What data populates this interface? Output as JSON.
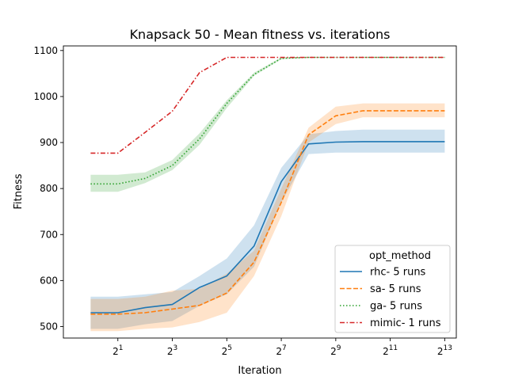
{
  "chart_data": {
    "type": "line",
    "title": "Knapsack 50 - Mean fitness vs. iterations",
    "xlabel": "Iteration",
    "ylabel": "Fitness",
    "x_scale": "log2",
    "x": [
      1,
      2,
      4,
      8,
      16,
      32,
      64,
      128,
      256,
      512,
      1024,
      2048,
      4096,
      8192
    ],
    "xlim": [
      0.5,
      11000
    ],
    "ylim": [
      475,
      1110
    ],
    "xticks": [
      {
        "value": 2,
        "base": "2",
        "exp": "1"
      },
      {
        "value": 8,
        "base": "2",
        "exp": "3"
      },
      {
        "value": 32,
        "base": "2",
        "exp": "5"
      },
      {
        "value": 128,
        "base": "2",
        "exp": "7"
      },
      {
        "value": 512,
        "base": "2",
        "exp": "9"
      },
      {
        "value": 2048,
        "base": "2",
        "exp": "11"
      },
      {
        "value": 8192,
        "base": "2",
        "exp": "13"
      }
    ],
    "yticks": [
      {
        "value": 500,
        "label": "500"
      },
      {
        "value": 600,
        "label": "600"
      },
      {
        "value": 700,
        "label": "700"
      },
      {
        "value": 800,
        "label": "800"
      },
      {
        "value": 900,
        "label": "900"
      },
      {
        "value": 1000,
        "label": "1000"
      },
      {
        "value": 1100,
        "label": "1100"
      }
    ],
    "grid": false,
    "legend": {
      "title": "opt_method",
      "position": "lower-right"
    },
    "series": [
      {
        "name": "rhc- 5 runs",
        "color": "#1f77b4",
        "dash": "solid",
        "values": [
          530,
          530,
          541,
          548,
          585,
          610,
          675,
          815,
          897,
          901,
          902,
          902,
          902,
          902
        ],
        "ci_low": [
          495,
          495,
          505,
          512,
          545,
          570,
          630,
          770,
          875,
          878,
          878,
          878,
          878,
          878
        ],
        "ci_high": [
          565,
          565,
          570,
          575,
          610,
          648,
          720,
          845,
          918,
          925,
          928,
          928,
          928,
          928
        ]
      },
      {
        "name": "sa- 5 runs",
        "color": "#ff7f0e",
        "dash": "dashed",
        "values": [
          527,
          527,
          530,
          538,
          546,
          573,
          640,
          770,
          917,
          958,
          969,
          969,
          969,
          969
        ],
        "ci_low": [
          490,
          490,
          495,
          498,
          510,
          530,
          610,
          740,
          900,
          940,
          955,
          955,
          955,
          955
        ],
        "ci_high": [
          560,
          560,
          565,
          578,
          582,
          615,
          665,
          800,
          932,
          978,
          985,
          985,
          985,
          985
        ]
      },
      {
        "name": "ga- 5 runs",
        "color": "#2ca02c",
        "dash": "dotted",
        "values": [
          810,
          810,
          822,
          850,
          908,
          985,
          1048,
          1083,
          1085,
          1085,
          1085,
          1085,
          1085,
          1085
        ],
        "ci_low": [
          793,
          793,
          812,
          840,
          895,
          975,
          1045,
          1081,
          1084,
          1084,
          1084,
          1084,
          1084,
          1084
        ],
        "ci_high": [
          830,
          830,
          835,
          862,
          920,
          992,
          1052,
          1085,
          1086,
          1086,
          1086,
          1086,
          1086,
          1086
        ]
      },
      {
        "name": "mimic- 1 runs",
        "color": "#d62728",
        "dash": "dashdot",
        "values": [
          877,
          877,
          922,
          968,
          1052,
          1085,
          1085,
          1085,
          1085,
          1085,
          1085,
          1085,
          1085,
          1085
        ]
      }
    ]
  }
}
